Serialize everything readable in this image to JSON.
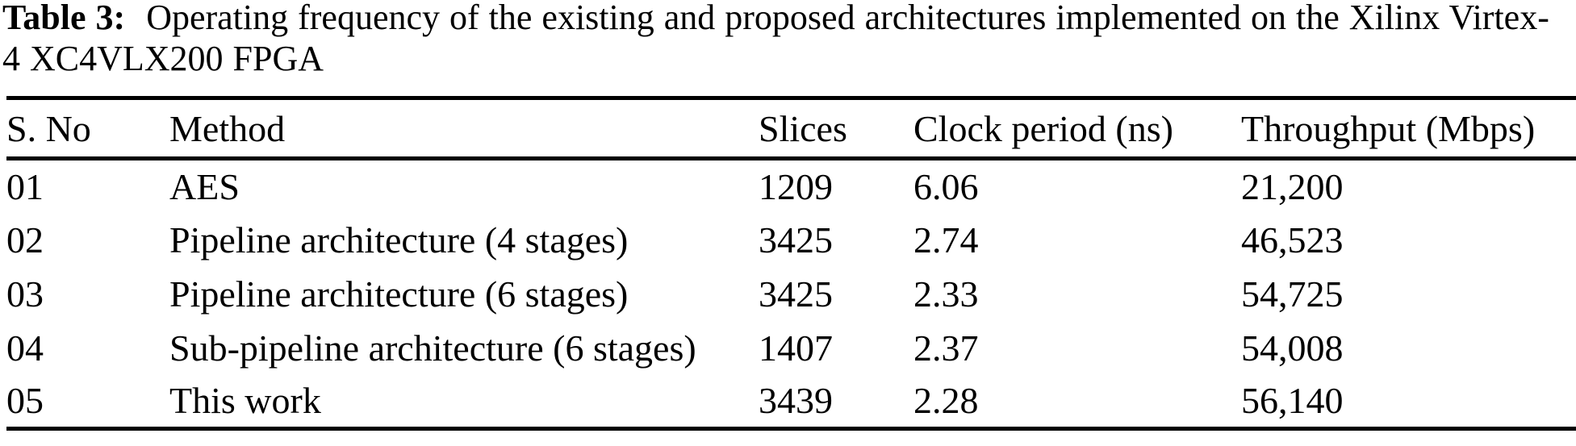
{
  "caption": {
    "label": "Table 3:",
    "line1": "Operating frequency of the existing and proposed architectures implemented on the Xilinx Virtex-",
    "line2": "4 XC4VLX200 FPGA"
  },
  "table": {
    "columns": {
      "s_no": "S. No",
      "method": "Method",
      "slices": "Slices",
      "clock_period": "Clock period (ns)",
      "throughput": "Throughput (Mbps)"
    },
    "rows": [
      {
        "s_no": "01",
        "method": "AES",
        "slices": "1209",
        "clock_period": "6.06",
        "throughput": "21,200"
      },
      {
        "s_no": "02",
        "method": "Pipeline architecture (4 stages)",
        "slices": "3425",
        "clock_period": "2.74",
        "throughput": "46,523"
      },
      {
        "s_no": "03",
        "method": "Pipeline architecture (6 stages)",
        "slices": "3425",
        "clock_period": "2.33",
        "throughput": "54,725"
      },
      {
        "s_no": "04",
        "method": "Sub-pipeline architecture (6 stages)",
        "slices": "1407",
        "clock_period": "2.37",
        "throughput": "54,008"
      },
      {
        "s_no": "05",
        "method": "This work",
        "slices": "3439",
        "clock_period": "2.28",
        "throughput": "56,140"
      }
    ]
  },
  "chart_data": {
    "type": "table",
    "title": "Table 3: Operating frequency of the existing and proposed architectures implemented on the Xilinx Virtex-4 XC4VLX200 FPGA",
    "columns": [
      "S. No",
      "Method",
      "Slices",
      "Clock period (ns)",
      "Throughput (Mbps)"
    ],
    "rows": [
      [
        "01",
        "AES",
        1209,
        6.06,
        21200
      ],
      [
        "02",
        "Pipeline architecture (4 stages)",
        3425,
        2.74,
        46523
      ],
      [
        "03",
        "Pipeline architecture (6 stages)",
        3425,
        2.33,
        54725
      ],
      [
        "04",
        "Sub-pipeline architecture (6 stages)",
        1407,
        2.37,
        54008
      ],
      [
        "05",
        "This work",
        3439,
        2.28,
        56140
      ]
    ]
  }
}
